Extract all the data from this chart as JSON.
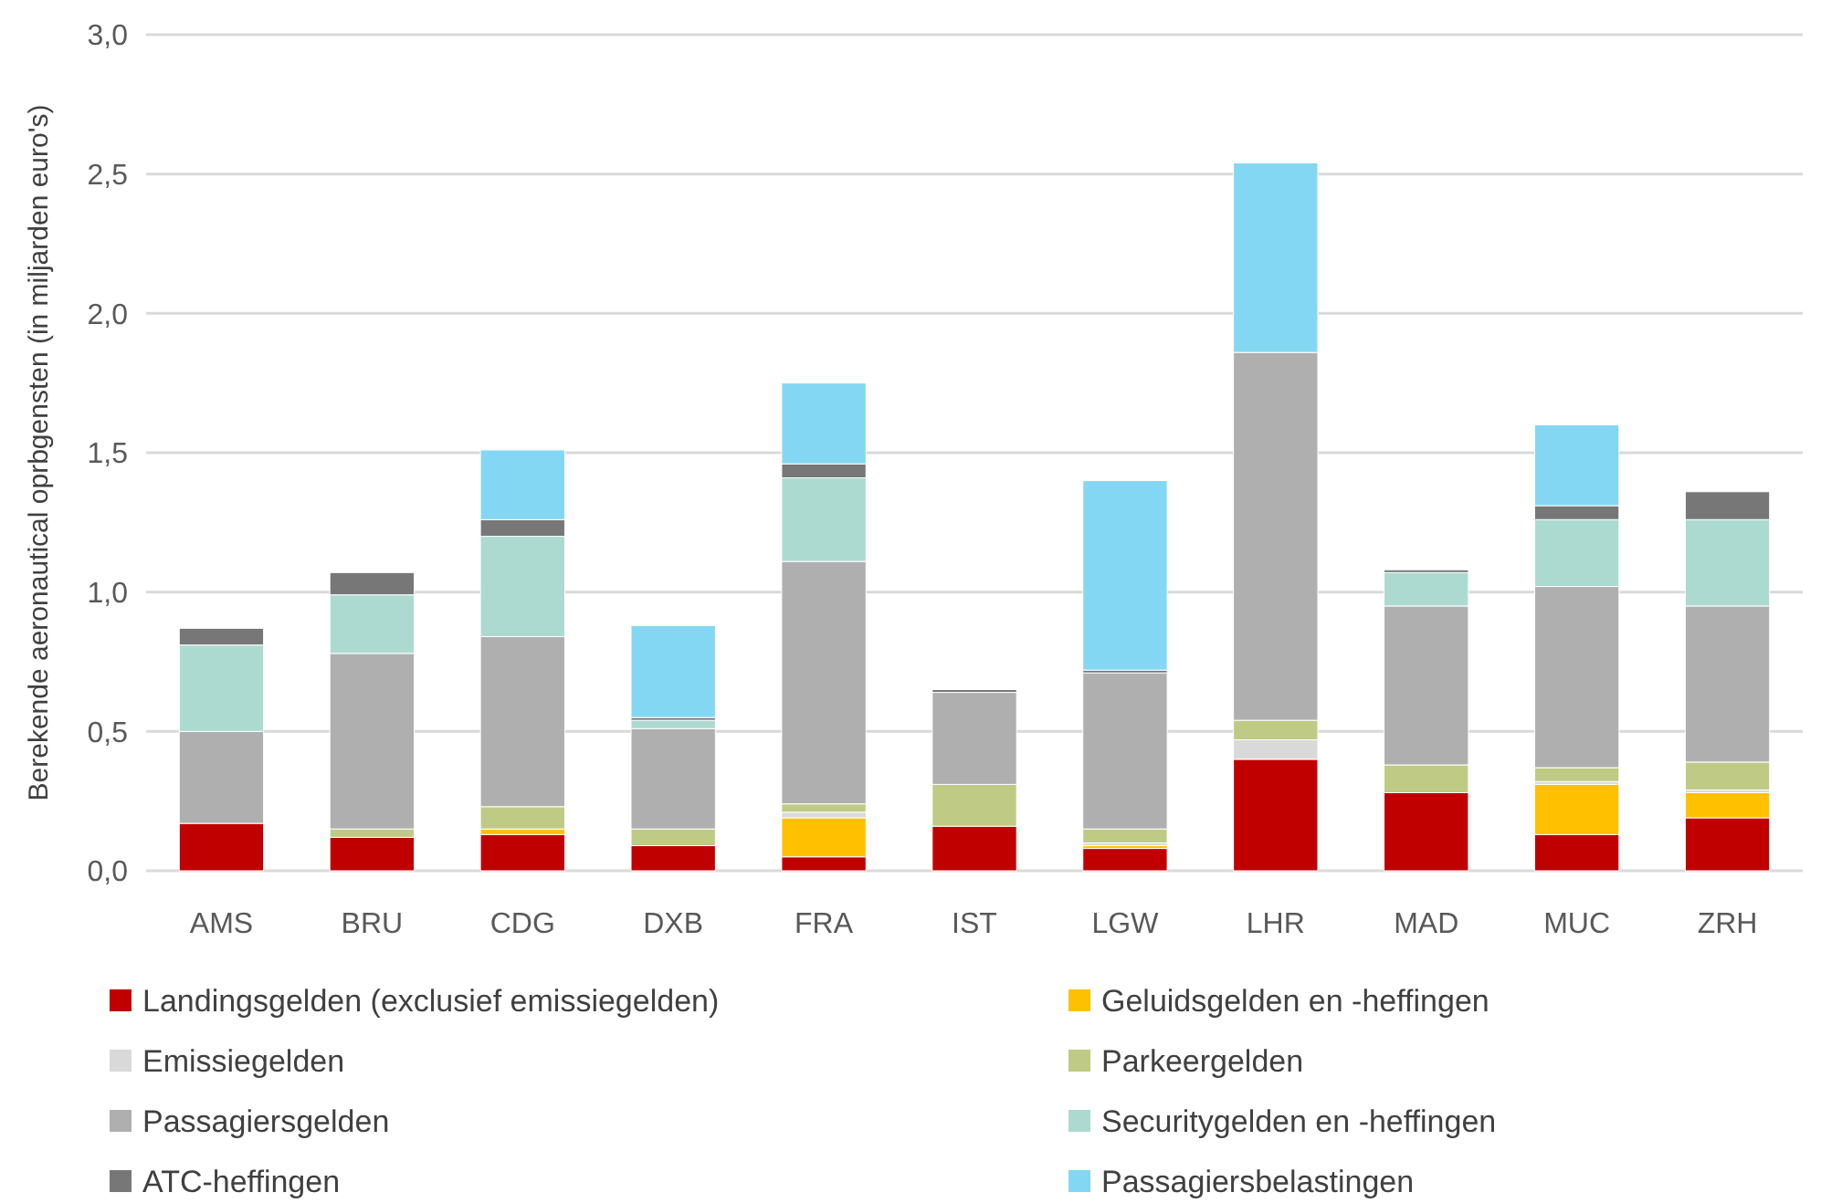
{
  "chart_data": {
    "type": "bar",
    "stacked": true,
    "ylabel": "Berekende aeronautical oprbgensten (in miljarden euro's)",
    "categories": [
      "AMS",
      "BRU",
      "CDG",
      "DXB",
      "FRA",
      "IST",
      "LGW",
      "LHR",
      "MAD",
      "MUC",
      "ZRH"
    ],
    "ylim": [
      0,
      3
    ],
    "yticks": [
      {
        "value": 0,
        "label": "0,0"
      },
      {
        "value": 0.5,
        "label": "0,5"
      },
      {
        "value": 1,
        "label": "1,0"
      },
      {
        "value": 1.5,
        "label": "1,5"
      },
      {
        "value": 2,
        "label": "2,0"
      },
      {
        "value": 2.5,
        "label": "2,5"
      },
      {
        "value": 3,
        "label": "3,0"
      }
    ],
    "grid": "y",
    "legend": "bottom",
    "series": [
      {
        "name": "Landingsgelden (exclusief emissiegelden)",
        "color": "#c00000",
        "values": [
          0.17,
          0.12,
          0.13,
          0.09,
          0.05,
          0.16,
          0.08,
          0.4,
          0.28,
          0.13,
          0.19
        ]
      },
      {
        "name": "Geluidsgelden en -heffingen",
        "color": "#ffc000",
        "values": [
          0,
          0,
          0.02,
          0,
          0.14,
          0,
          0.01,
          0,
          0,
          0.18,
          0.09
        ]
      },
      {
        "name": "Emissiegelden",
        "color": "#d9d9d9",
        "values": [
          0,
          0,
          0,
          0,
          0.02,
          0,
          0.01,
          0.07,
          0,
          0.01,
          0.01
        ]
      },
      {
        "name": "Parkeergelden",
        "color": "#bfca84",
        "values": [
          0,
          0.03,
          0.08,
          0.06,
          0.03,
          0.15,
          0.05,
          0.07,
          0.1,
          0.05,
          0.1
        ]
      },
      {
        "name": "Passagiersgelden",
        "color": "#afafaf",
        "values": [
          0.33,
          0.63,
          0.61,
          0.36,
          0.87,
          0.33,
          0.56,
          1.32,
          0.57,
          0.65,
          0.56
        ]
      },
      {
        "name": "Securitygelden en -heffingen",
        "color": "#acdad0",
        "values": [
          0.31,
          0.21,
          0.36,
          0.03,
          0.3,
          0,
          0,
          0,
          0.12,
          0.24,
          0.31
        ]
      },
      {
        "name": "ATC-heffingen",
        "color": "#777777",
        "values": [
          0.06,
          0.08,
          0.06,
          0.01,
          0.05,
          0.01,
          0.01,
          0,
          0.01,
          0.05,
          0.1
        ]
      },
      {
        "name": "Passagiersbelastingen",
        "color": "#83d7f3",
        "values": [
          0,
          0,
          0.25,
          0.33,
          0.29,
          0,
          0.68,
          0.68,
          0,
          0.29,
          0
        ]
      }
    ]
  }
}
